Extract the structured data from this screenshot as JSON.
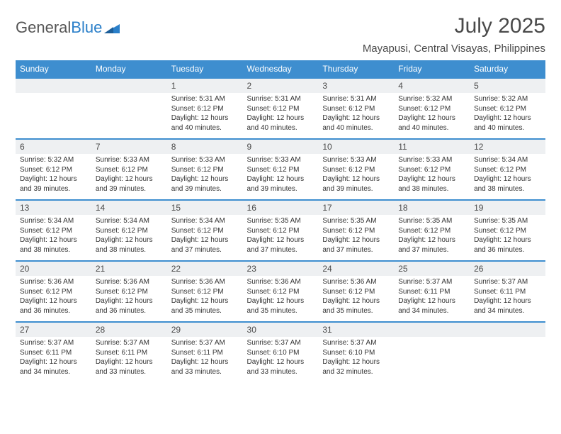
{
  "brand": {
    "part1": "General",
    "part2": "Blue"
  },
  "header": {
    "month_title": "July 2025",
    "location": "Mayapusi, Central Visayas, Philippines"
  },
  "colors": {
    "header_bg": "#3e8ecf",
    "header_text": "#ffffff",
    "daynum_bg": "#eef0f2",
    "border": "#3e8ecf",
    "body_text": "#333333",
    "title_text": "#4a4a4a"
  },
  "day_headers": [
    "Sunday",
    "Monday",
    "Tuesday",
    "Wednesday",
    "Thursday",
    "Friday",
    "Saturday"
  ],
  "weeks": [
    {
      "nums": [
        "",
        "",
        "1",
        "2",
        "3",
        "4",
        "5"
      ],
      "cells": [
        {
          "sunrise": "",
          "sunset": "",
          "daylight": ""
        },
        {
          "sunrise": "",
          "sunset": "",
          "daylight": ""
        },
        {
          "sunrise": "Sunrise: 5:31 AM",
          "sunset": "Sunset: 6:12 PM",
          "daylight": "Daylight: 12 hours and 40 minutes."
        },
        {
          "sunrise": "Sunrise: 5:31 AM",
          "sunset": "Sunset: 6:12 PM",
          "daylight": "Daylight: 12 hours and 40 minutes."
        },
        {
          "sunrise": "Sunrise: 5:31 AM",
          "sunset": "Sunset: 6:12 PM",
          "daylight": "Daylight: 12 hours and 40 minutes."
        },
        {
          "sunrise": "Sunrise: 5:32 AM",
          "sunset": "Sunset: 6:12 PM",
          "daylight": "Daylight: 12 hours and 40 minutes."
        },
        {
          "sunrise": "Sunrise: 5:32 AM",
          "sunset": "Sunset: 6:12 PM",
          "daylight": "Daylight: 12 hours and 40 minutes."
        }
      ]
    },
    {
      "nums": [
        "6",
        "7",
        "8",
        "9",
        "10",
        "11",
        "12"
      ],
      "cells": [
        {
          "sunrise": "Sunrise: 5:32 AM",
          "sunset": "Sunset: 6:12 PM",
          "daylight": "Daylight: 12 hours and 39 minutes."
        },
        {
          "sunrise": "Sunrise: 5:33 AM",
          "sunset": "Sunset: 6:12 PM",
          "daylight": "Daylight: 12 hours and 39 minutes."
        },
        {
          "sunrise": "Sunrise: 5:33 AM",
          "sunset": "Sunset: 6:12 PM",
          "daylight": "Daylight: 12 hours and 39 minutes."
        },
        {
          "sunrise": "Sunrise: 5:33 AM",
          "sunset": "Sunset: 6:12 PM",
          "daylight": "Daylight: 12 hours and 39 minutes."
        },
        {
          "sunrise": "Sunrise: 5:33 AM",
          "sunset": "Sunset: 6:12 PM",
          "daylight": "Daylight: 12 hours and 39 minutes."
        },
        {
          "sunrise": "Sunrise: 5:33 AM",
          "sunset": "Sunset: 6:12 PM",
          "daylight": "Daylight: 12 hours and 38 minutes."
        },
        {
          "sunrise": "Sunrise: 5:34 AM",
          "sunset": "Sunset: 6:12 PM",
          "daylight": "Daylight: 12 hours and 38 minutes."
        }
      ]
    },
    {
      "nums": [
        "13",
        "14",
        "15",
        "16",
        "17",
        "18",
        "19"
      ],
      "cells": [
        {
          "sunrise": "Sunrise: 5:34 AM",
          "sunset": "Sunset: 6:12 PM",
          "daylight": "Daylight: 12 hours and 38 minutes."
        },
        {
          "sunrise": "Sunrise: 5:34 AM",
          "sunset": "Sunset: 6:12 PM",
          "daylight": "Daylight: 12 hours and 38 minutes."
        },
        {
          "sunrise": "Sunrise: 5:34 AM",
          "sunset": "Sunset: 6:12 PM",
          "daylight": "Daylight: 12 hours and 37 minutes."
        },
        {
          "sunrise": "Sunrise: 5:35 AM",
          "sunset": "Sunset: 6:12 PM",
          "daylight": "Daylight: 12 hours and 37 minutes."
        },
        {
          "sunrise": "Sunrise: 5:35 AM",
          "sunset": "Sunset: 6:12 PM",
          "daylight": "Daylight: 12 hours and 37 minutes."
        },
        {
          "sunrise": "Sunrise: 5:35 AM",
          "sunset": "Sunset: 6:12 PM",
          "daylight": "Daylight: 12 hours and 37 minutes."
        },
        {
          "sunrise": "Sunrise: 5:35 AM",
          "sunset": "Sunset: 6:12 PM",
          "daylight": "Daylight: 12 hours and 36 minutes."
        }
      ]
    },
    {
      "nums": [
        "20",
        "21",
        "22",
        "23",
        "24",
        "25",
        "26"
      ],
      "cells": [
        {
          "sunrise": "Sunrise: 5:36 AM",
          "sunset": "Sunset: 6:12 PM",
          "daylight": "Daylight: 12 hours and 36 minutes."
        },
        {
          "sunrise": "Sunrise: 5:36 AM",
          "sunset": "Sunset: 6:12 PM",
          "daylight": "Daylight: 12 hours and 36 minutes."
        },
        {
          "sunrise": "Sunrise: 5:36 AM",
          "sunset": "Sunset: 6:12 PM",
          "daylight": "Daylight: 12 hours and 35 minutes."
        },
        {
          "sunrise": "Sunrise: 5:36 AM",
          "sunset": "Sunset: 6:12 PM",
          "daylight": "Daylight: 12 hours and 35 minutes."
        },
        {
          "sunrise": "Sunrise: 5:36 AM",
          "sunset": "Sunset: 6:12 PM",
          "daylight": "Daylight: 12 hours and 35 minutes."
        },
        {
          "sunrise": "Sunrise: 5:37 AM",
          "sunset": "Sunset: 6:11 PM",
          "daylight": "Daylight: 12 hours and 34 minutes."
        },
        {
          "sunrise": "Sunrise: 5:37 AM",
          "sunset": "Sunset: 6:11 PM",
          "daylight": "Daylight: 12 hours and 34 minutes."
        }
      ]
    },
    {
      "nums": [
        "27",
        "28",
        "29",
        "30",
        "31",
        "",
        ""
      ],
      "cells": [
        {
          "sunrise": "Sunrise: 5:37 AM",
          "sunset": "Sunset: 6:11 PM",
          "daylight": "Daylight: 12 hours and 34 minutes."
        },
        {
          "sunrise": "Sunrise: 5:37 AM",
          "sunset": "Sunset: 6:11 PM",
          "daylight": "Daylight: 12 hours and 33 minutes."
        },
        {
          "sunrise": "Sunrise: 5:37 AM",
          "sunset": "Sunset: 6:11 PM",
          "daylight": "Daylight: 12 hours and 33 minutes."
        },
        {
          "sunrise": "Sunrise: 5:37 AM",
          "sunset": "Sunset: 6:10 PM",
          "daylight": "Daylight: 12 hours and 33 minutes."
        },
        {
          "sunrise": "Sunrise: 5:37 AM",
          "sunset": "Sunset: 6:10 PM",
          "daylight": "Daylight: 12 hours and 32 minutes."
        },
        {
          "sunrise": "",
          "sunset": "",
          "daylight": ""
        },
        {
          "sunrise": "",
          "sunset": "",
          "daylight": ""
        }
      ]
    }
  ]
}
